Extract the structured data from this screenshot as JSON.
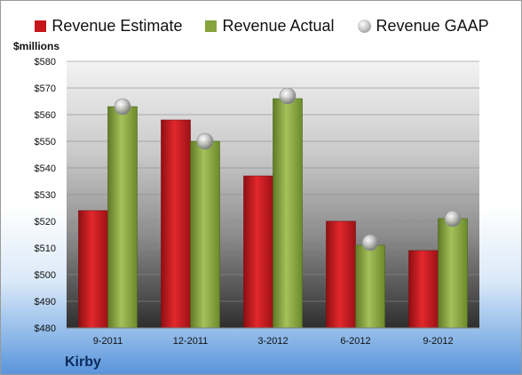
{
  "legend": [
    {
      "label": "Revenue Estimate",
      "key": "estimate"
    },
    {
      "label": "Revenue Actual",
      "key": "actual"
    },
    {
      "label": "Revenue GAAP",
      "key": "gaap"
    }
  ],
  "unit_label": "$millions",
  "company": "Kirby",
  "colors": {
    "estimate": "#c4171c",
    "actual": "#86a33c",
    "gaap": "#bdbdbd",
    "plot_bg_top": "#f2f2f2",
    "plot_bg_bottom": "#333333"
  },
  "chart_data": {
    "type": "bar",
    "title": "",
    "xlabel": "",
    "ylabel": "$millions",
    "categories": [
      "9-2011",
      "12-2011",
      "3-2012",
      "6-2012",
      "9-2012"
    ],
    "series": [
      {
        "name": "Revenue Estimate",
        "type": "bar",
        "values": [
          524,
          558,
          537,
          520,
          509
        ]
      },
      {
        "name": "Revenue Actual",
        "type": "bar",
        "values": [
          563,
          550,
          566,
          511,
          521
        ]
      },
      {
        "name": "Revenue GAAP",
        "type": "marker",
        "values": [
          563,
          550,
          567,
          512,
          521
        ]
      }
    ],
    "ylim": [
      480,
      580
    ],
    "yticks": [
      "$480",
      "$490",
      "$500",
      "$510",
      "$520",
      "$530",
      "$540",
      "$550",
      "$560",
      "$570",
      "$580"
    ],
    "grid": true,
    "legend_position": "top"
  }
}
